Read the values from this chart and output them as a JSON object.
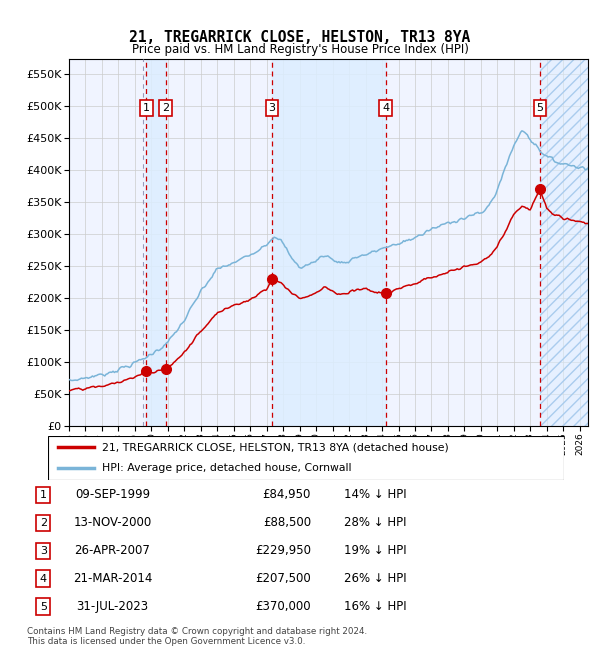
{
  "title": "21, TREGARRICK CLOSE, HELSTON, TR13 8YA",
  "subtitle": "Price paid vs. HM Land Registry's House Price Index (HPI)",
  "ylim": [
    0,
    575000
  ],
  "yticks": [
    0,
    50000,
    100000,
    150000,
    200000,
    250000,
    300000,
    350000,
    400000,
    450000,
    500000,
    550000
  ],
  "xlim_start": 1995.0,
  "xlim_end": 2026.5,
  "transactions": [
    {
      "num": 1,
      "date_label": "09-SEP-1999",
      "year": 1999.69,
      "price": 84950,
      "pct": "14%",
      "dir": "↓"
    },
    {
      "num": 2,
      "date_label": "13-NOV-2000",
      "year": 2000.87,
      "price": 88500,
      "pct": "28%",
      "dir": "↓"
    },
    {
      "num": 3,
      "date_label": "26-APR-2007",
      "year": 2007.32,
      "price": 229950,
      "pct": "19%",
      "dir": "↓"
    },
    {
      "num": 4,
      "date_label": "21-MAR-2014",
      "year": 2014.22,
      "price": 207500,
      "pct": "26%",
      "dir": "↓"
    },
    {
      "num": 5,
      "date_label": "31-JUL-2023",
      "year": 2023.58,
      "price": 370000,
      "pct": "16%",
      "dir": "↓"
    }
  ],
  "legend_line1": "21, TREGARRICK CLOSE, HELSTON, TR13 8YA (detached house)",
  "legend_line2": "HPI: Average price, detached house, Cornwall",
  "footer1": "Contains HM Land Registry data © Crown copyright and database right 2024.",
  "footer2": "This data is licensed under the Open Government Licence v3.0.",
  "hpi_color": "#7ab4d8",
  "price_color": "#cc0000",
  "shade_color": "#ddeeff",
  "background_color": "#ffffff",
  "grid_color": "#cccccc",
  "chart_bg": "#f0f4ff"
}
